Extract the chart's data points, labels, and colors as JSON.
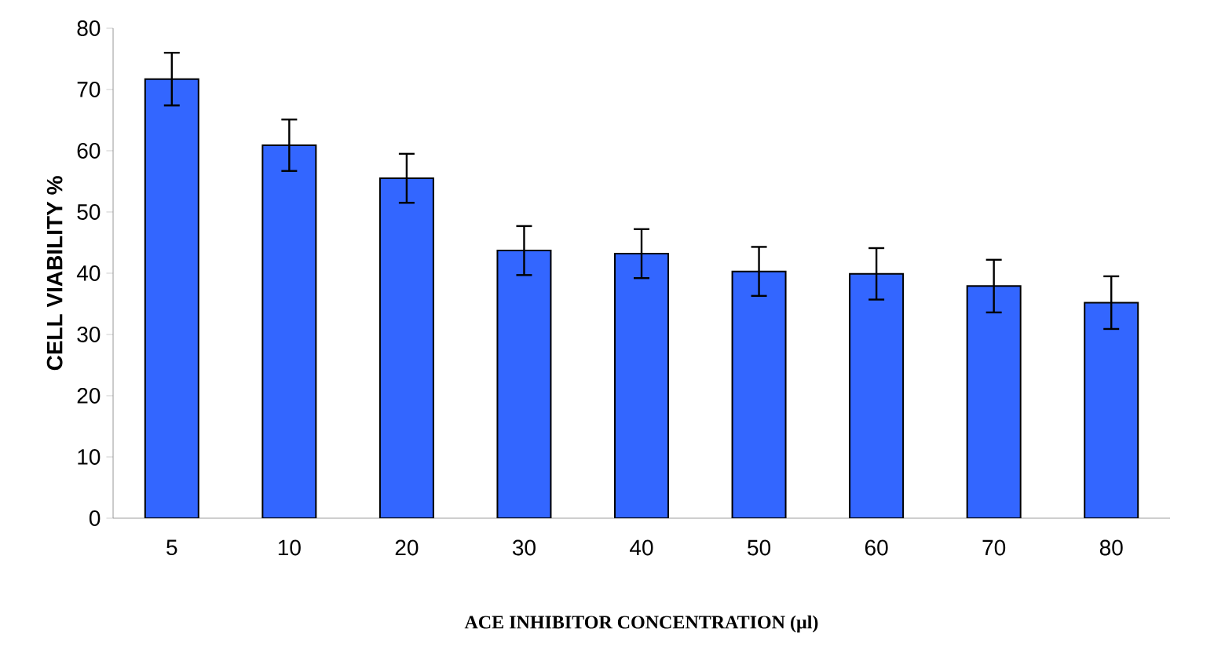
{
  "chart_data": {
    "type": "bar",
    "xlabel": "ACE INHIBITOR CONCENTRATION (µl)",
    "ylabel": "CELL VIABILITY %",
    "categories": [
      "5",
      "10",
      "20",
      "30",
      "40",
      "50",
      "60",
      "70",
      "80"
    ],
    "values": [
      71.7,
      60.9,
      55.5,
      43.7,
      43.2,
      40.3,
      39.9,
      37.9,
      35.2
    ],
    "errors": [
      4.3,
      4.2,
      4,
      4,
      4,
      4,
      4.2,
      4.3,
      4.3
    ],
    "color": "#3366ff",
    "ylim": [
      0,
      80
    ],
    "yticks": [
      0,
      10,
      20,
      30,
      40,
      50,
      60,
      70,
      80
    ],
    "grid": false
  }
}
